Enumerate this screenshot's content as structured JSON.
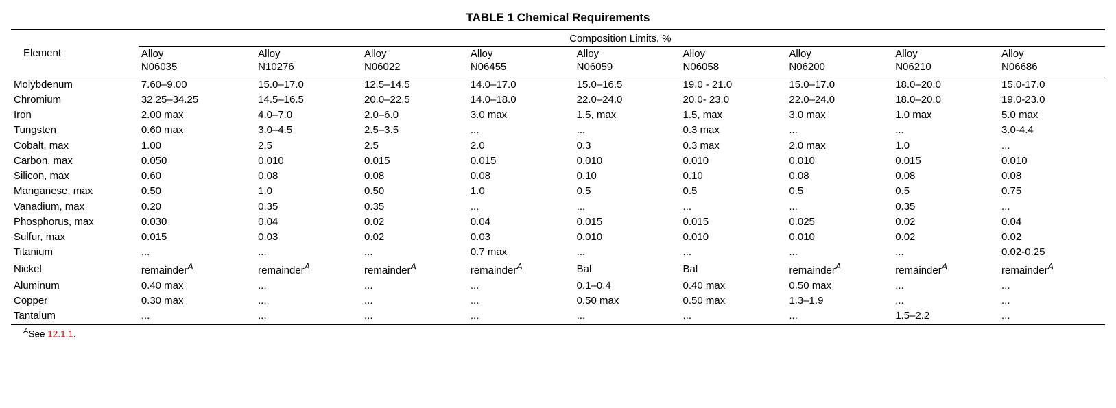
{
  "title": "TABLE 1  Chemical Requirements",
  "group_header": "Composition Limits, %",
  "element_header": "Element",
  "alloy_label": "Alloy",
  "alloys": [
    "N06035",
    "N10276",
    "N06022",
    "N06455",
    "N06059",
    "N06058",
    "N06200",
    "N06210",
    "N06686"
  ],
  "rows": [
    {
      "el": "Molybdenum",
      "v": [
        "7.60–9.00",
        "15.0–17.0",
        "12.5–14.5",
        "14.0–17.0",
        "15.0–16.5",
        "19.0 - 21.0",
        "15.0–17.0",
        "18.0–20.0",
        "15.0-17.0"
      ]
    },
    {
      "el": "Chromium",
      "v": [
        "32.25–34.25",
        "14.5–16.5",
        "20.0–22.5",
        "14.0–18.0",
        "22.0–24.0",
        "20.0- 23.0",
        "22.0–24.0",
        "18.0–20.0",
        "19.0-23.0"
      ]
    },
    {
      "el": "Iron",
      "v": [
        "2.00 max",
        "4.0–7.0",
        "2.0–6.0",
        "3.0 max",
        "1.5, max",
        "1.5, max",
        "3.0 max",
        "1.0 max",
        "5.0 max"
      ]
    },
    {
      "el": "Tungsten",
      "v": [
        "0.60 max",
        "3.0–4.5",
        "2.5–3.5",
        "...",
        "...",
        "0.3 max",
        "...",
        "...",
        "3.0-4.4"
      ]
    },
    {
      "el": "Cobalt, max",
      "v": [
        "1.00",
        "2.5",
        "2.5",
        "2.0",
        "0.3",
        "0.3 max",
        "2.0 max",
        "1.0",
        "..."
      ]
    },
    {
      "el": "Carbon, max",
      "v": [
        "0.050",
        "0.010",
        "0.015",
        "0.015",
        "0.010",
        "0.010",
        "0.010",
        "0.015",
        "0.010"
      ]
    },
    {
      "el": "Silicon, max",
      "v": [
        "0.60",
        "0.08",
        "0.08",
        "0.08",
        "0.10",
        "0.10",
        "0.08",
        "0.08",
        "0.08"
      ]
    },
    {
      "el": "Manganese, max",
      "v": [
        "0.50",
        "1.0",
        "0.50",
        "1.0",
        "0.5",
        "0.5",
        "0.5",
        "0.5",
        "0.75"
      ]
    },
    {
      "el": "Vanadium, max",
      "v": [
        "0.20",
        "0.35",
        "0.35",
        "...",
        "...",
        "...",
        "...",
        "0.35",
        "..."
      ]
    },
    {
      "el": "Phosphorus, max",
      "v": [
        "0.030",
        "0.04",
        "0.02",
        "0.04",
        "0.015",
        "0.015",
        "0.025",
        "0.02",
        "0.04"
      ]
    },
    {
      "el": "Sulfur, max",
      "v": [
        "0.015",
        "0.03",
        "0.02",
        "0.03",
        "0.010",
        "0.010",
        "0.010",
        "0.02",
        "0.02"
      ]
    },
    {
      "el": "Titanium",
      "v": [
        "...",
        "...",
        "...",
        "0.7 max",
        "...",
        "...",
        "...",
        "...",
        "0.02-0.25"
      ]
    },
    {
      "el": "Nickel",
      "v": [
        "remainder",
        "remainder",
        "remainder",
        "remainder",
        "Bal",
        "Bal",
        "remainder",
        "remainder",
        "remainder"
      ],
      "sup": [
        true,
        true,
        true,
        true,
        false,
        false,
        true,
        true,
        true
      ]
    },
    {
      "el": "Aluminum",
      "v": [
        "0.40 max",
        "...",
        "...",
        "...",
        "0.1–0.4",
        "0.40 max",
        "0.50 max",
        "...",
        "..."
      ]
    },
    {
      "el": "Copper",
      "v": [
        "0.30 max",
        "...",
        "...",
        "...",
        "0.50 max",
        "0.50 max",
        "1.3–1.9",
        "...",
        "..."
      ]
    },
    {
      "el": "Tantalum",
      "v": [
        "...",
        "...",
        "...",
        "...",
        "...",
        "...",
        "...",
        "1.5–2.2",
        "..."
      ]
    }
  ],
  "footnote_sup": "A",
  "footnote_text": "See ",
  "footnote_link": "12.1.1",
  "footnote_period": ".",
  "colors": {
    "text": "#000000",
    "link": "#c00000",
    "background": "#ffffff",
    "rule": "#000000"
  },
  "col_widths_pct": [
    12,
    11,
    10,
    10,
    10,
    10,
    10,
    10,
    10,
    10
  ]
}
